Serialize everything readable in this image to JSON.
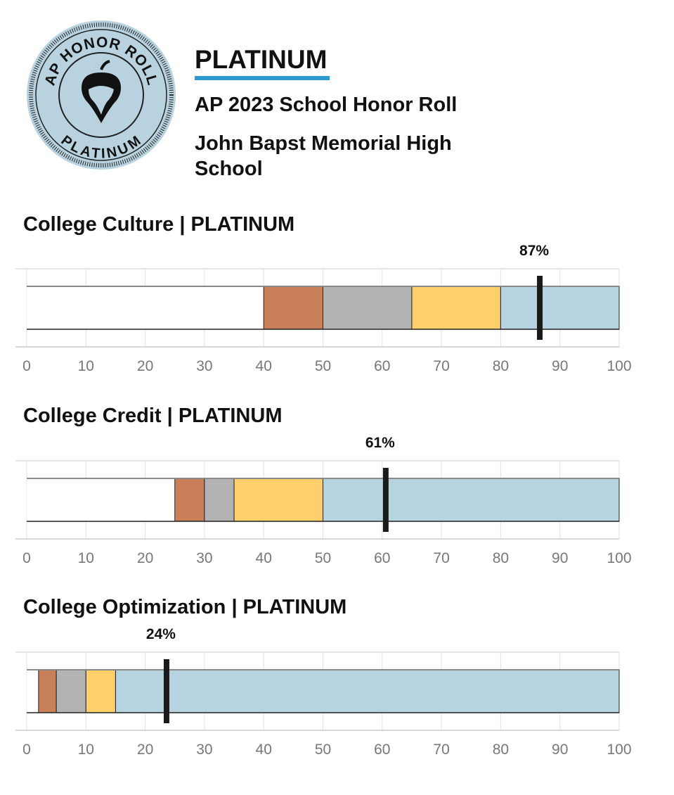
{
  "header": {
    "badge_text_top": "AP HONOR ROLL",
    "badge_text_bottom": "PLATINUM",
    "tier": "PLATINUM",
    "subtitle": "AP 2023 School Honor Roll",
    "school": "John Bapst Memorial High School"
  },
  "colors": {
    "bronze": "#c98059",
    "silver": "#b3b3b3",
    "gold": "#fdd06c",
    "platinum": "#b6d4df",
    "accent": "#2b9bd1"
  },
  "chart_data": [
    {
      "type": "bar",
      "title": "College Culture  |  PLATINUM",
      "value": 87,
      "value_label": "87%",
      "marker": 86.6,
      "segments": [
        {
          "name": "bronze",
          "from": 40,
          "to": 50
        },
        {
          "name": "silver",
          "from": 50,
          "to": 65
        },
        {
          "name": "gold",
          "from": 65,
          "to": 80
        },
        {
          "name": "platinum",
          "from": 80,
          "to": 100
        }
      ],
      "xlim": [
        0,
        100
      ],
      "ticks": [
        "0",
        "10",
        "20",
        "30",
        "40",
        "50",
        "60",
        "70",
        "80",
        "90",
        "100"
      ],
      "grid": true
    },
    {
      "type": "bar",
      "title": "College Credit  |  PLATINUM",
      "value": 61,
      "value_label": "61%",
      "marker": 60.6,
      "segments": [
        {
          "name": "bronze",
          "from": 25,
          "to": 30
        },
        {
          "name": "silver",
          "from": 30,
          "to": 35
        },
        {
          "name": "gold",
          "from": 35,
          "to": 50
        },
        {
          "name": "platinum",
          "from": 50,
          "to": 100
        }
      ],
      "xlim": [
        0,
        100
      ],
      "ticks": [
        "0",
        "10",
        "20",
        "30",
        "40",
        "50",
        "60",
        "70",
        "80",
        "90",
        "100"
      ],
      "grid": true
    },
    {
      "type": "bar",
      "title": "College Optimization  |  PLATINUM",
      "value": 24,
      "value_label": "24%",
      "marker": 23.6,
      "segments": [
        {
          "name": "bronze",
          "from": 2,
          "to": 5
        },
        {
          "name": "silver",
          "from": 5,
          "to": 10
        },
        {
          "name": "gold",
          "from": 10,
          "to": 15
        },
        {
          "name": "platinum",
          "from": 15,
          "to": 100
        }
      ],
      "xlim": [
        0,
        100
      ],
      "ticks": [
        "0",
        "10",
        "20",
        "30",
        "40",
        "50",
        "60",
        "70",
        "80",
        "90",
        "100"
      ],
      "grid": true
    }
  ]
}
